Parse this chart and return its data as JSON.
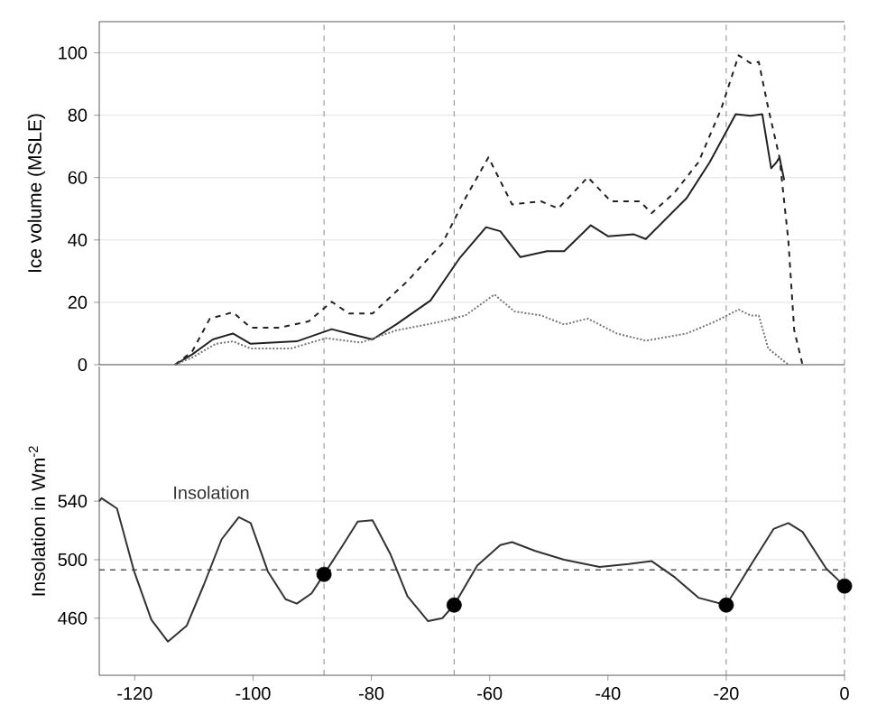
{
  "chart_data": [
    {
      "type": "line",
      "ylabel": "Ice volume (MSLE)",
      "xlim": [
        -126,
        0
      ],
      "xticks": [
        -120,
        -100,
        -80,
        -60,
        -40,
        -20,
        0
      ],
      "ylim": [
        0,
        110
      ],
      "yticks": [
        0,
        20,
        40,
        60,
        80,
        100
      ],
      "grid": "y",
      "tick_labels": "y",
      "ref_lines": [
        {
          "axis": "x",
          "value": -88,
          "color": "#888888",
          "line_style": "dashed"
        },
        {
          "axis": "x",
          "value": -66,
          "color": "#888888",
          "line_style": "dashed"
        },
        {
          "axis": "x",
          "value": -20,
          "color": "#888888",
          "line_style": "dashed"
        },
        {
          "axis": "x",
          "value": 0,
          "color": "#888888",
          "line_style": "dashed"
        }
      ],
      "series": [
        {
          "color": "#222222",
          "line_style": "solid",
          "x": [
            -113.2,
            -110.3,
            -106.8,
            -103.4,
            -100.4,
            -96.5,
            -92.6,
            -86.7,
            -83.8,
            -79.8,
            -75.8,
            -70.0,
            -65.1,
            -60.6,
            -58.2,
            -54.8,
            -50.3,
            -47.4,
            -42.9,
            -40,
            -35.6,
            -33.6,
            -26.7,
            -22.8,
            -18.4,
            -15.9,
            -13.9,
            -12.4,
            -11.5,
            -11,
            -10.2
          ],
          "values": [
            0,
            3.3,
            8.1,
            10,
            6.7,
            7.1,
            7.5,
            11.4,
            10,
            8.1,
            12.9,
            20.6,
            34.1,
            44.1,
            42.8,
            34.5,
            36.4,
            36.4,
            44.7,
            41.2,
            41.8,
            40.3,
            53.4,
            64.9,
            80.3,
            79.8,
            80.3,
            63,
            64.9,
            66.5,
            59.2
          ]
        },
        {
          "color": "#222222",
          "line_style": "dashed",
          "x": [
            -113.2,
            -110.3,
            -107.3,
            -103.4,
            -100.4,
            -95.5,
            -90.6,
            -86.7,
            -83.8,
            -79.8,
            -73.9,
            -68.0,
            -64.1,
            -60.2,
            -56.2,
            -51.3,
            -48.4,
            -43.4,
            -39.5,
            -34.6,
            -32.6,
            -28.7,
            -24.7,
            -20.8,
            -17.9,
            -15.9,
            -14.5,
            -12.9,
            -11,
            -9.5,
            -8.5,
            -7.1
          ],
          "values": [
            0,
            4.2,
            14.8,
            16.8,
            11.9,
            11.9,
            13.9,
            20.2,
            16.4,
            16.4,
            26.8,
            38.9,
            53.4,
            66.5,
            51.4,
            52.4,
            50.1,
            60.1,
            52.4,
            52.4,
            48.6,
            55.3,
            64.9,
            82.3,
            99.2,
            96.7,
            97.1,
            82.3,
            66.5,
            39.9,
            11,
            0
          ]
        },
        {
          "color": "#777777",
          "line_style": "dotted",
          "x": [
            -113.2,
            -110.3,
            -106.3,
            -103.4,
            -100.4,
            -93.6,
            -87.7,
            -81.8,
            -75.8,
            -69.0,
            -64.1,
            -59.2,
            -55.8,
            -51.3,
            -47.4,
            -43.4,
            -38.5,
            -33.6,
            -26.7,
            -21.8,
            -17.9,
            -15.9,
            -14.5,
            -12.9,
            -11,
            -9.5
          ],
          "values": [
            0,
            2.3,
            6.7,
            7.5,
            5.2,
            5.2,
            8.5,
            7.1,
            11,
            13.5,
            15.8,
            22.5,
            17.1,
            15.8,
            12.9,
            14.8,
            10,
            7.7,
            10,
            13.9,
            17.7,
            15.8,
            15.8,
            5.2,
            2.3,
            0
          ]
        }
      ]
    },
    {
      "type": "line",
      "ylabel": "Insolation in Wm$^{-2}$",
      "xlim": [
        -126,
        0
      ],
      "xticks": [
        -120,
        -100,
        -80,
        -60,
        -40,
        -20,
        0
      ],
      "ylim": [
        421,
        632
      ],
      "yticks": [
        460,
        500,
        540
      ],
      "grid": "y",
      "ref_lines": [
        {
          "axis": "x",
          "value": -88,
          "color": "#888888",
          "line_style": "dashed"
        },
        {
          "axis": "x",
          "value": -66,
          "color": "#888888",
          "line_style": "dashed"
        },
        {
          "axis": "x",
          "value": -20,
          "color": "#888888",
          "line_style": "dashed"
        },
        {
          "axis": "x",
          "value": 0,
          "color": "#888888",
          "line_style": "dashed"
        },
        {
          "axis": "y",
          "value": 493,
          "color": "#555555",
          "line_style": "dashed"
        }
      ],
      "series": [
        {
          "name": "Insolation",
          "color": "#333333",
          "line_style": "solid",
          "x": [
            -126,
            -125.6,
            -123.0,
            -120.1,
            -117.2,
            -114.4,
            -111.2,
            -108.3,
            -105.3,
            -102.4,
            -100.4,
            -97.5,
            -94.5,
            -92.6,
            -90.1,
            -88,
            -84.8,
            -82.3,
            -79.8,
            -76.8,
            -73.9,
            -70.4,
            -68.0,
            -66,
            -62.1,
            -58.2,
            -56.2,
            -52.3,
            -47.4,
            -41.4,
            -36.5,
            -32.6,
            -28.7,
            -24.7,
            -20,
            -15.9,
            -12.0,
            -9.5,
            -7.1,
            -3.1,
            0
          ],
          "values": [
            540,
            542,
            535,
            492,
            459,
            444,
            455,
            483,
            514,
            529,
            525,
            492,
            473,
            470,
            477,
            490,
            510,
            526,
            527,
            504,
            475,
            458,
            460,
            469,
            496,
            510,
            512,
            506,
            500,
            495,
            497,
            499,
            488,
            474,
            469,
            496,
            521,
            525,
            519,
            494,
            482
          ]
        },
        {
          "type": "scatter",
          "color": "#000000",
          "marker": "circle",
          "x": [
            -88,
            -66,
            -20,
            0
          ],
          "values": [
            490,
            469,
            469,
            482
          ]
        }
      ]
    }
  ]
}
